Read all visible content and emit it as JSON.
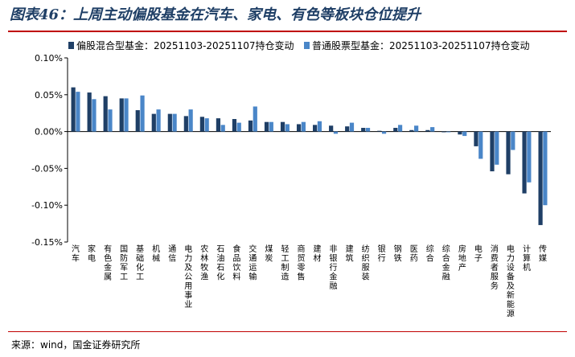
{
  "header": {
    "title": "图表46：上周主动偏股基金在汽车、家电、有色等板块仓位提升"
  },
  "footer": {
    "source": "来源：wind，国金证券研究所"
  },
  "colors": {
    "series1": "#1f3f66",
    "series2": "#4a86c8",
    "rule": "#c00000"
  },
  "chart_data": {
    "type": "bar",
    "title": "图表46：上周主动偏股基金在汽车、家电、有色等板块仓位提升",
    "xlabel": "",
    "ylabel": "",
    "ylim": [
      -0.15,
      0.1
    ],
    "yticks": [
      0.1,
      0.05,
      0.0,
      -0.05,
      -0.1,
      -0.15
    ],
    "ytick_labels": [
      "0.10%",
      "0.05%",
      "0.00%",
      "-0.05%",
      "-0.10%",
      "-0.15%"
    ],
    "grid": false,
    "legend_position": "top",
    "categories": [
      "汽车",
      "家电",
      "有色金属",
      "国防军工",
      "基础化工",
      "机械",
      "通信",
      "电力及公用事业",
      "农林牧渔",
      "石油石化",
      "食品饮料",
      "交通运输",
      "煤炭",
      "轻工制造",
      "商贸零售",
      "建材",
      "非银行金融",
      "建筑",
      "纺织服装",
      "银行",
      "钢铁",
      "医药",
      "综合",
      "综合金融",
      "房地产",
      "电子",
      "消费者服务",
      "电力设备及新能源",
      "计算机",
      "传媒"
    ],
    "series": [
      {
        "name": "偏股混合型基金：20251103-20251107持仓变动",
        "values": [
          0.06,
          0.053,
          0.048,
          0.045,
          0.029,
          0.024,
          0.024,
          0.021,
          0.02,
          0.018,
          0.017,
          0.015,
          0.013,
          0.013,
          0.01,
          0.009,
          0.008,
          0.007,
          0.005,
          0.001,
          0.005,
          0.002,
          0.002,
          -0.001,
          -0.004,
          -0.02,
          -0.054,
          -0.058,
          -0.084,
          -0.127
        ]
      },
      {
        "name": "普通股票型基金：20251103-20251107持仓变动",
        "values": [
          0.054,
          0.044,
          0.03,
          0.045,
          0.049,
          0.03,
          0.024,
          0.03,
          0.018,
          0.009,
          0.012,
          0.034,
          0.013,
          0.01,
          0.013,
          0.014,
          -0.003,
          0.012,
          0.005,
          -0.003,
          0.009,
          0.008,
          0.006,
          -0.001,
          -0.006,
          -0.037,
          -0.045,
          -0.025,
          -0.069,
          -0.1
        ]
      }
    ]
  }
}
